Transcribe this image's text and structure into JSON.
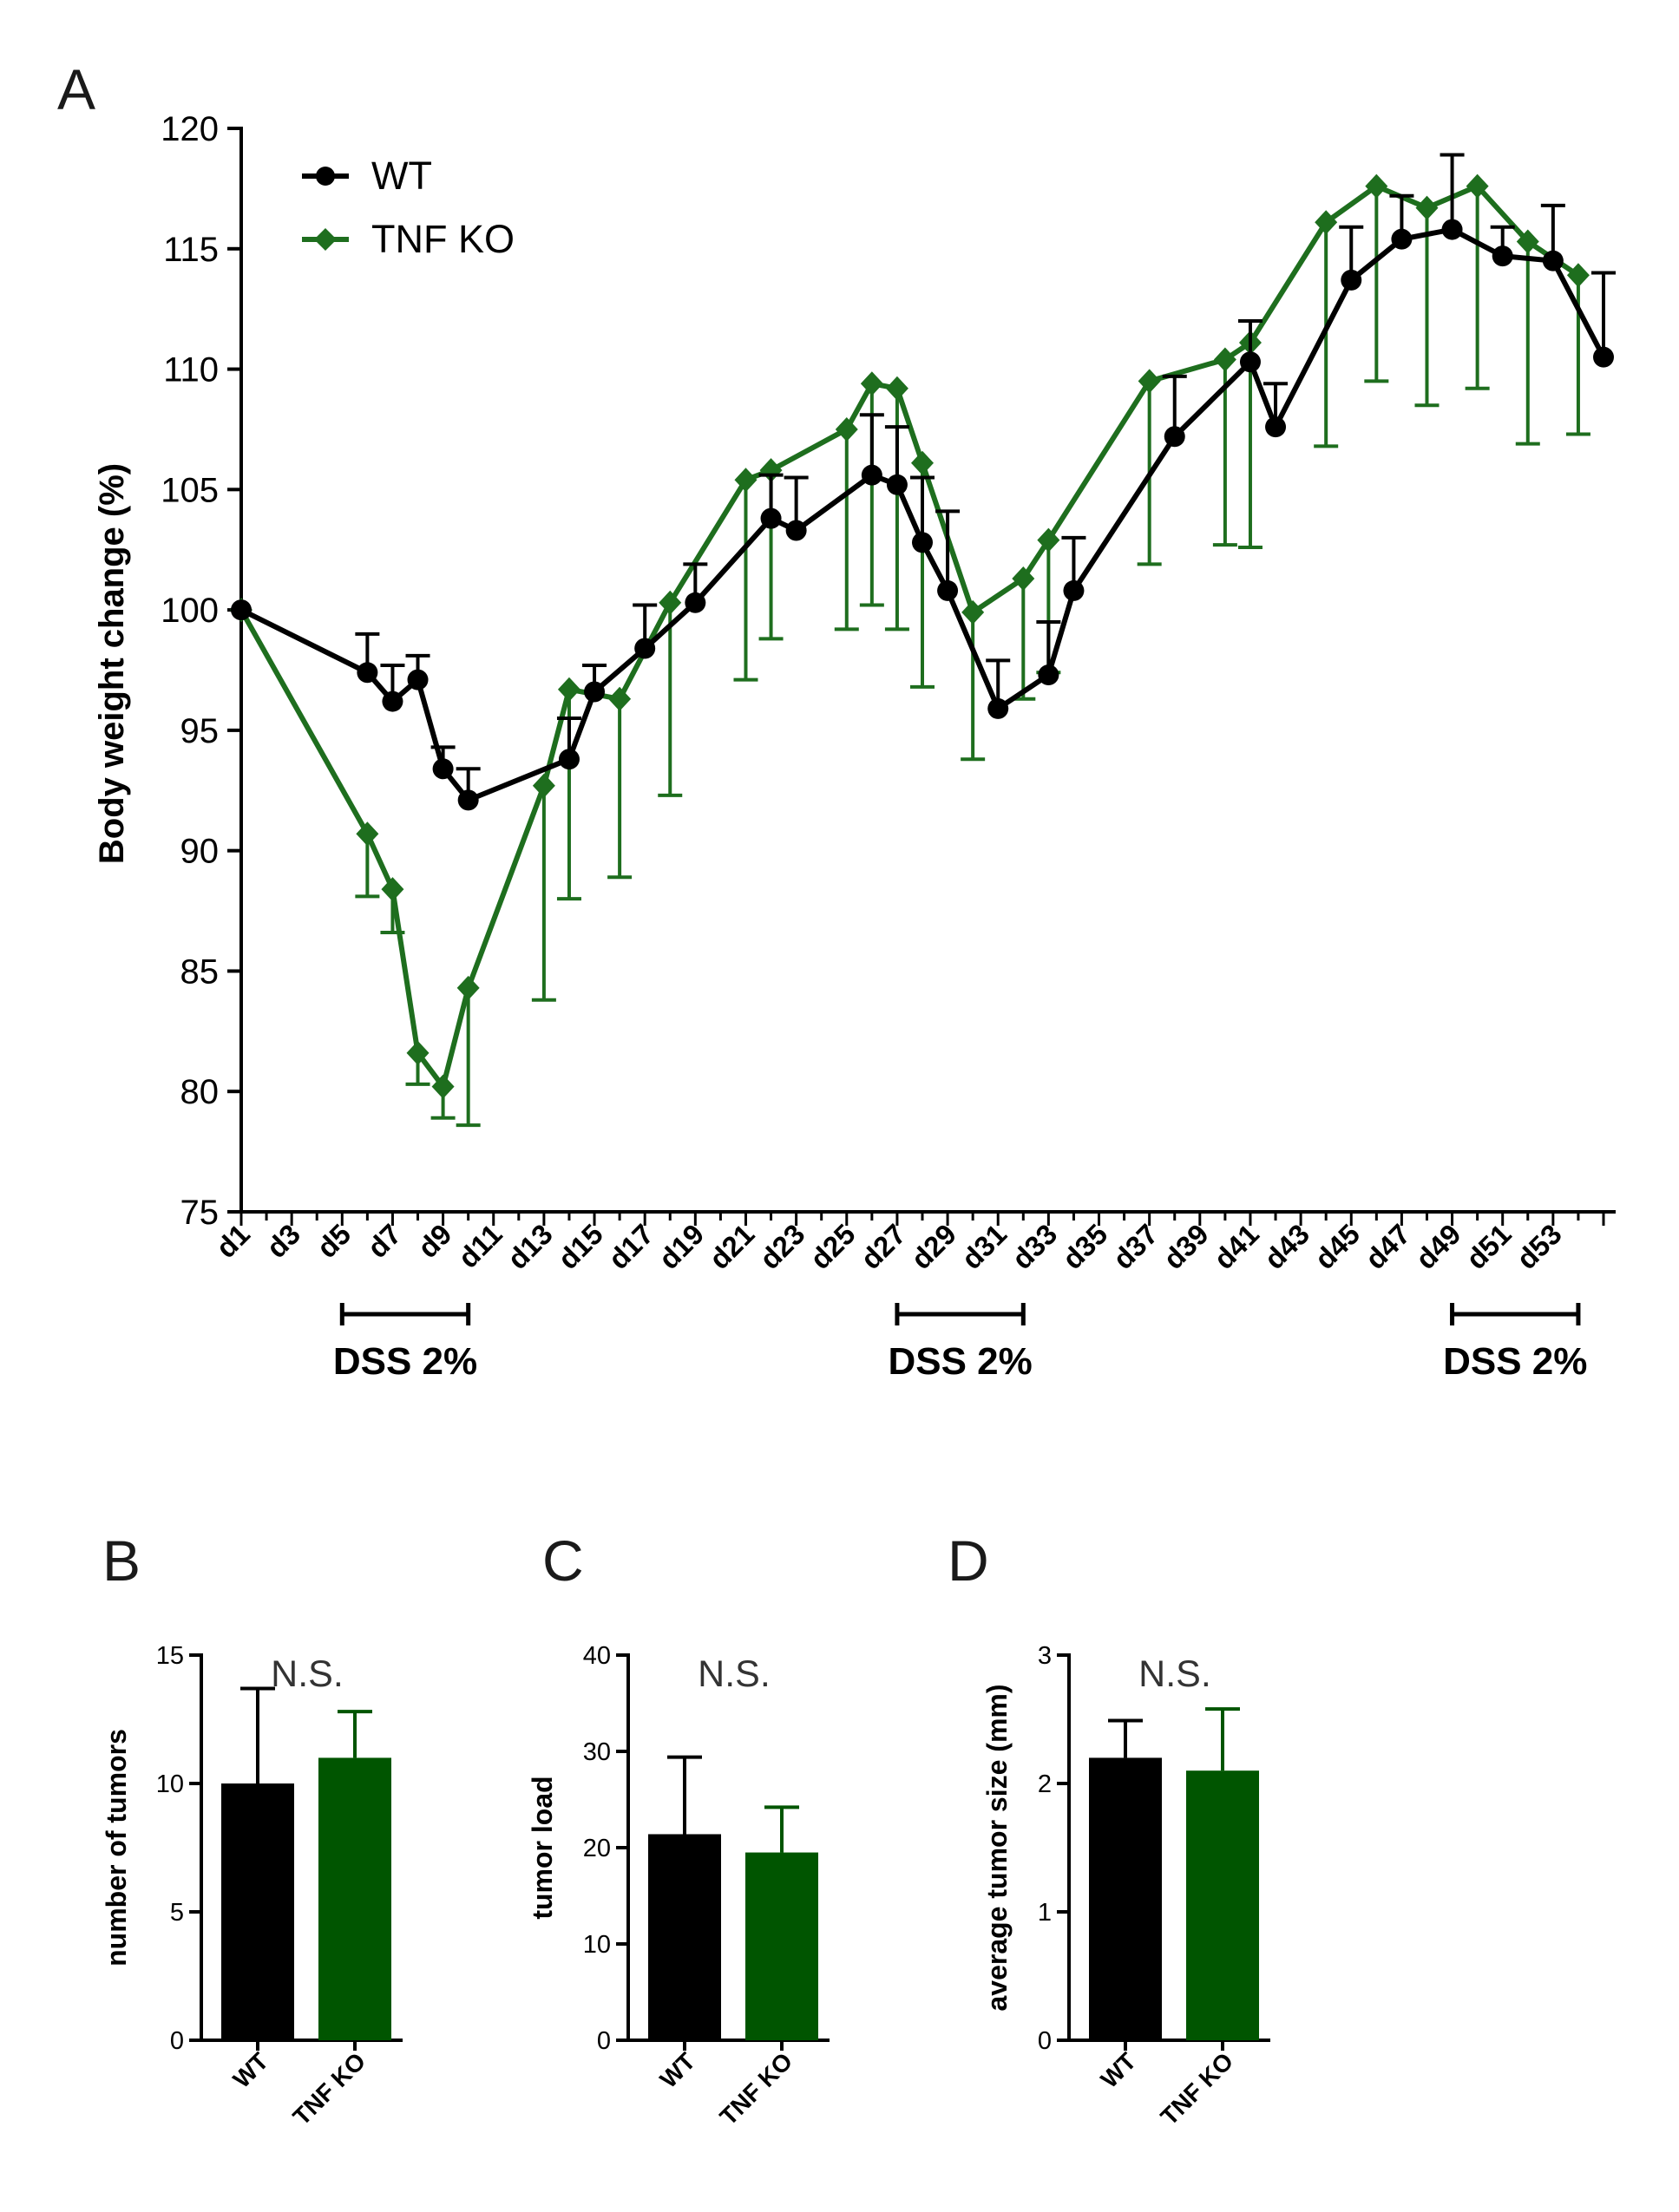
{
  "colors": {
    "wt": "#000000",
    "tnfko": "#1e6e1e",
    "tnfko_bar": "#005500",
    "axis": "#000000"
  },
  "chart_data": [
    {
      "panel": "A",
      "type": "line",
      "ylabel": "Body weight change (%)",
      "xlabel": "",
      "ylim": [
        75,
        120
      ],
      "yticks": [
        75,
        80,
        85,
        90,
        95,
        100,
        105,
        110,
        115,
        120
      ],
      "x_domain": [
        1,
        55
      ],
      "x_tick_days": [
        1,
        3,
        5,
        7,
        9,
        11,
        13,
        15,
        17,
        19,
        21,
        23,
        25,
        27,
        29,
        31,
        33,
        35,
        37,
        39,
        41,
        43,
        45,
        47,
        49,
        51,
        53
      ],
      "x_tick_labels": [
        "d1",
        "d3",
        "d5",
        "d7",
        "d9",
        "d11",
        "d13",
        "d15",
        "d17",
        "d19",
        "d21",
        "d23",
        "d25",
        "d27",
        "d29",
        "d31",
        "d33",
        "d35",
        "d37",
        "d39",
        "d41",
        "d43",
        "d45",
        "d47",
        "d49",
        "d51",
        "d53"
      ],
      "legend": [
        "WT",
        "TNF KO"
      ],
      "series": [
        {
          "name": "WT",
          "marker": "circle",
          "error_direction": "up",
          "x": [
            1,
            6,
            7,
            8,
            9,
            10,
            14,
            15,
            17,
            19,
            22,
            23,
            26,
            27,
            28,
            29,
            31,
            33,
            34,
            38,
            41,
            42,
            45,
            47,
            49,
            51,
            53,
            55
          ],
          "y": [
            100,
            97.4,
            96.2,
            97.1,
            93.4,
            92.1,
            93.8,
            96.6,
            98.4,
            100.3,
            103.8,
            103.3,
            105.6,
            105.2,
            102.8,
            100.8,
            95.9,
            97.3,
            100.8,
            107.2,
            110.3,
            107.6,
            113.7,
            115.4,
            115.8,
            114.7,
            114.5,
            110.5
          ],
          "err": [
            0,
            1.6,
            1.5,
            1.0,
            0.9,
            1.3,
            1.7,
            1.1,
            1.8,
            1.6,
            1.8,
            2.2,
            2.5,
            2.4,
            2.7,
            3.3,
            2.0,
            2.2,
            2.2,
            2.5,
            1.7,
            1.8,
            2.2,
            1.8,
            3.1,
            1.2,
            2.3,
            3.5
          ]
        },
        {
          "name": "TNF KO",
          "marker": "diamond",
          "error_direction": "down",
          "x": [
            1,
            6,
            7,
            8,
            9,
            10,
            13,
            14,
            16,
            18,
            21,
            22,
            25,
            26,
            27,
            28,
            30,
            32,
            33,
            37,
            40,
            41,
            44,
            46,
            48,
            50,
            52,
            54
          ],
          "y": [
            100,
            90.7,
            88.4,
            81.6,
            80.2,
            84.3,
            92.7,
            96.7,
            96.3,
            100.3,
            105.4,
            105.8,
            107.5,
            109.4,
            109.2,
            106.1,
            99.9,
            101.3,
            102.9,
            109.5,
            110.4,
            111.1,
            116.1,
            117.6,
            116.7,
            117.6,
            115.3,
            113.9
          ],
          "err": [
            0,
            2.6,
            1.8,
            1.3,
            1.3,
            5.7,
            8.9,
            8.7,
            7.4,
            8.0,
            8.3,
            7.0,
            8.3,
            9.2,
            10.0,
            9.3,
            6.1,
            5.0,
            5.5,
            7.6,
            7.7,
            8.5,
            9.3,
            8.1,
            8.2,
            8.4,
            8.4,
            6.6
          ]
        }
      ],
      "annotations": [
        {
          "text": "DSS 2%",
          "from_day": 5,
          "to_day": 10
        },
        {
          "text": "DSS 2%",
          "from_day": 27,
          "to_day": 32
        },
        {
          "text": "DSS 2%",
          "from_day": 49,
          "to_day": 54
        }
      ]
    },
    {
      "panel": "B",
      "type": "bar",
      "ylabel": "number of tumors",
      "ylim": [
        0,
        15
      ],
      "yticks": [
        0,
        5,
        10,
        15
      ],
      "categories": [
        "WT",
        "TNF KO"
      ],
      "values": [
        10.0,
        11.0
      ],
      "errors": [
        3.7,
        1.8
      ],
      "annotation": "N.S."
    },
    {
      "panel": "C",
      "type": "bar",
      "ylabel": "tumor load",
      "ylim": [
        0,
        40
      ],
      "yticks": [
        0,
        10,
        20,
        30,
        40
      ],
      "categories": [
        "WT",
        "TNF KO"
      ],
      "values": [
        21.4,
        19.5
      ],
      "errors": [
        8.0,
        4.7
      ],
      "annotation": "N.S."
    },
    {
      "panel": "D",
      "type": "bar",
      "ylabel": "average tumor size (mm)",
      "ylim": [
        0,
        3
      ],
      "yticks": [
        0,
        1,
        2,
        3
      ],
      "categories": [
        "WT",
        "TNF KO"
      ],
      "values": [
        2.2,
        2.1
      ],
      "errors": [
        0.29,
        0.48
      ],
      "annotation": "N.S."
    }
  ]
}
